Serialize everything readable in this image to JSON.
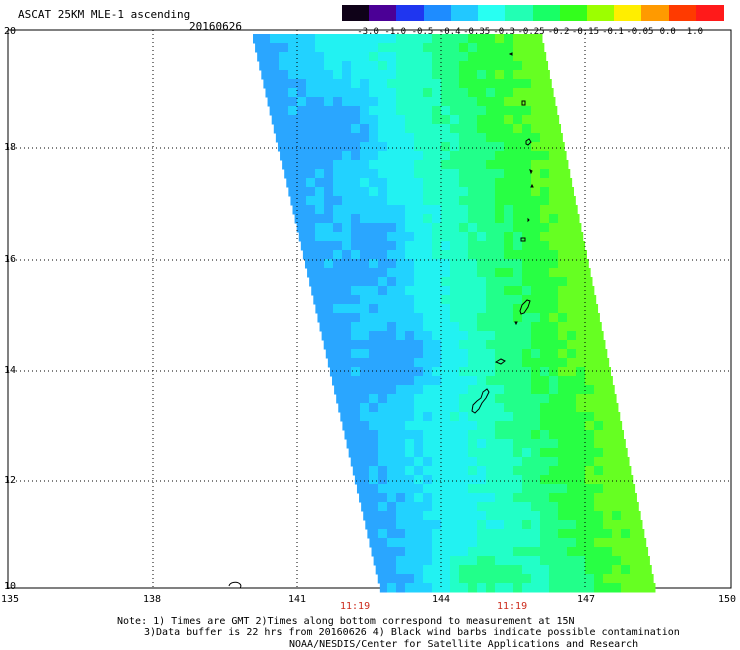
{
  "header": {
    "title": "ASCAT 25KM MLE-1 ascending",
    "date": "20160626"
  },
  "colorbar": {
    "labels": [
      "-3.0",
      "-1.0",
      "-0.5",
      "-0.4",
      "-0.35",
      "-0.3",
      "-0.25",
      "-0.2",
      "-0.15",
      "-0.1",
      "-0.05",
      "0.0",
      "1.0"
    ],
    "colors": [
      "#0f0218",
      "#4b0096",
      "#1f36f0",
      "#1e8cff",
      "#22c8ff",
      "#28fff2",
      "#22ffb4",
      "#18ff66",
      "#33ff1c",
      "#9cff00",
      "#ffee00",
      "#ff9a00",
      "#ff3a00",
      "#ff1a1a"
    ]
  },
  "axes": {
    "lat_ticks": [
      "20",
      "18",
      "16",
      "14",
      "12",
      "10"
    ],
    "lon_ticks": [
      "135",
      "138",
      "141",
      "144",
      "147",
      "150"
    ],
    "time_labels": [
      "11:19",
      "11:19"
    ]
  },
  "notes": {
    "line1": "Note: 1) Times are GMT 2)Times along bottom correspond to measurement at 15N",
    "line2": "3)Data buffer is 22 hrs from 20160626 4) Black wind barbs indicate possible contamination",
    "line3": "NOAA/NESDIS/Center for Satellite Applications and Research"
  },
  "map": {
    "swath_name": "ASCAT swath",
    "islands_name": "Mariana Islands"
  }
}
